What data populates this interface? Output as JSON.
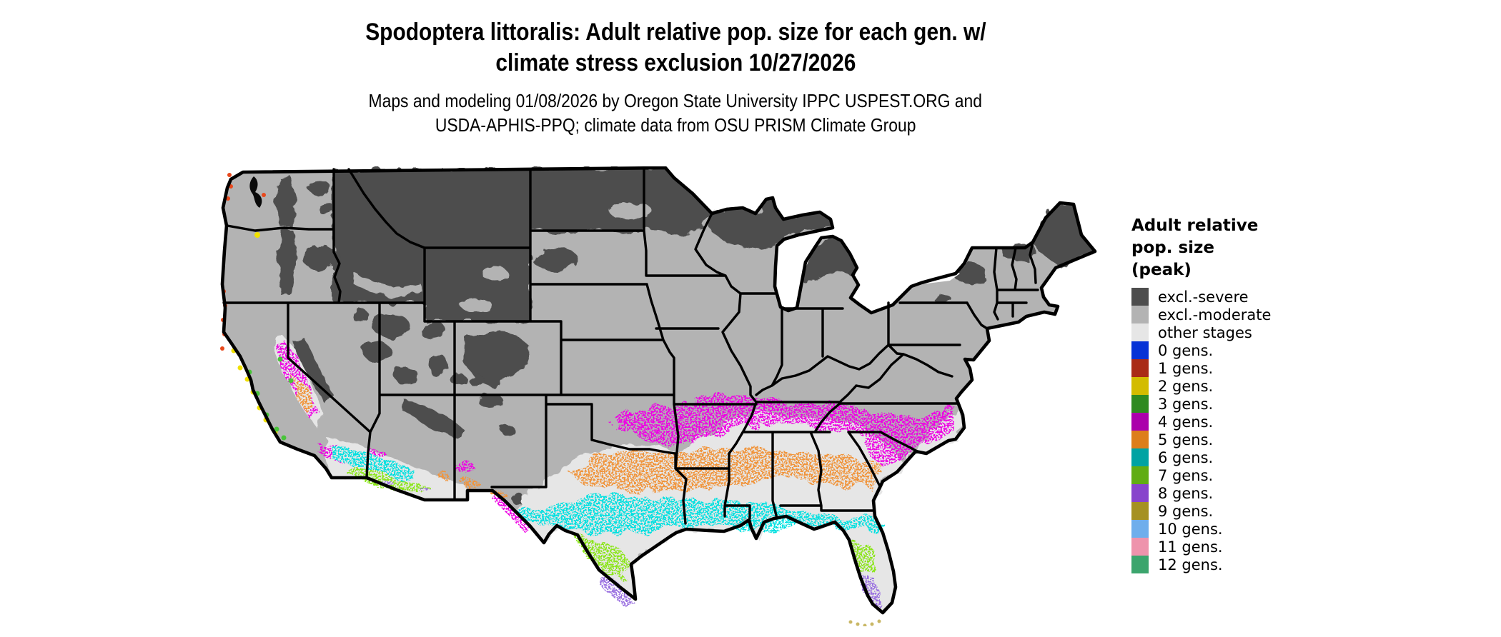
{
  "page": {
    "background": "#ffffff"
  },
  "title": {
    "line1": "Spodoptera littoralis: Adult relative pop. size for each gen. w/",
    "line2": "climate stress exclusion 10/27/2026"
  },
  "subtitle": {
    "line1": "Maps and modeling 01/08/2026 by Oregon State University IPPC USPEST.ORG and",
    "line2": "USDA-APHIS-PPQ; climate data from OSU PRISM Climate Group"
  },
  "map": {
    "description": "Conterminous United States raster map of peak adult relative population size classes with state borders",
    "lakes_color": "#ffffff",
    "border_color": "#000000",
    "classes_visible_on_map": [
      "excl.-severe",
      "excl.-moderate",
      "other stages",
      "1 gens.",
      "2 gens.",
      "3 gens.",
      "4 gens.",
      "5 gens.",
      "6 gens.",
      "7 gens.",
      "8 gens.",
      "9 gens."
    ]
  },
  "legend": {
    "title_lines": [
      "Adult relative",
      "pop. size",
      "(peak)"
    ],
    "entries": [
      {
        "key": "severe",
        "label": "excl.-severe",
        "color": "#4d4d4d"
      },
      {
        "key": "moderate",
        "label": "excl.-moderate",
        "color": "#b3b3b3"
      },
      {
        "key": "other",
        "label": "other stages",
        "color": "#e6e6e6"
      },
      {
        "key": "g0",
        "label": "0 gens.",
        "color": "#0733d6"
      },
      {
        "key": "g1",
        "label": "1 gens.",
        "color": "#a92b16",
        "map_color": "#e8481c"
      },
      {
        "key": "g2",
        "label": "2 gens.",
        "color": "#d3bc00",
        "map_color": "#f0e000"
      },
      {
        "key": "g3",
        "label": "3 gens.",
        "color": "#2f8a20",
        "map_color": "#49c43a"
      },
      {
        "key": "g4",
        "label": "4 gens.",
        "color": "#ab00ab",
        "map_color": "#ee00e4"
      },
      {
        "key": "g5",
        "label": "5 gens.",
        "color": "#dd7e1b",
        "map_color": "#f0953c"
      },
      {
        "key": "g6",
        "label": "6 gens.",
        "color": "#00a3a3",
        "map_color": "#00e0e0"
      },
      {
        "key": "g7",
        "label": "7 gens.",
        "color": "#61ad13",
        "map_color": "#8ce61a"
      },
      {
        "key": "g8",
        "label": "8 gens.",
        "color": "#8844cc",
        "map_color": "#9a6fe0"
      },
      {
        "key": "g9",
        "label": "9 gens.",
        "color": "#a59122",
        "map_color": "#c9b765"
      },
      {
        "key": "g10",
        "label": "10 gens.",
        "color": "#6faeec"
      },
      {
        "key": "g11",
        "label": "11 gens.",
        "color": "#ee93ac"
      },
      {
        "key": "g12",
        "label": "12 gens.",
        "color": "#3ca56d"
      }
    ]
  }
}
